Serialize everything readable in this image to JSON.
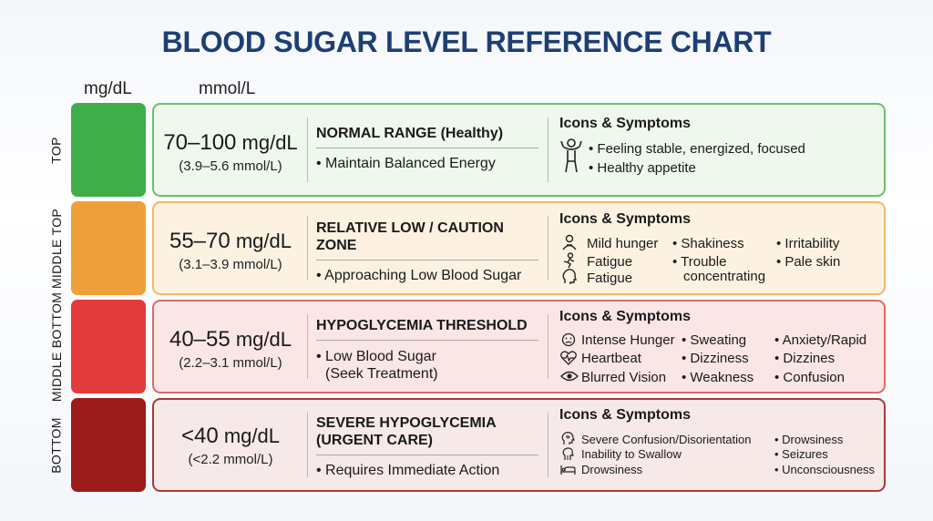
{
  "title": "BLOOD SUGAR LEVEL REFERENCE CHART",
  "column_headers": {
    "mgdl": "mg/dL",
    "mmol": "mmol/L"
  },
  "colors": {
    "title": "#1d3f73",
    "top": "#3fae49",
    "middle_top": "#f0a03a",
    "middle_bottom": "#e23b3b",
    "bottom": "#9c1b1b"
  },
  "rows": [
    {
      "side_label": "TOP",
      "range_main": "70–100",
      "range_unit": " mg/dL",
      "range_sub": "(3.9–5.6 mmol/L)",
      "heading": "NORMAL RANGE (Healthy)",
      "description": "• Maintain Balanced Energy",
      "symptoms_title": "Icons & Symptoms",
      "symptoms": [
        "• Feeling stable, energized, focused",
        "• Healthy appetite"
      ],
      "icons": [
        "person-flexing-icon"
      ]
    },
    {
      "side_label": "MIDDLE TOP",
      "range_main": "55–70",
      "range_unit": " mg/dL",
      "range_sub": "(3.1–3.9 mmol/L)",
      "heading": "RELATIVE LOW / CAUTION ZONE",
      "description": "• Approaching Low Blood Sugar",
      "symptoms_title": "Icons & Symptoms",
      "symptoms": [
        "Mild hunger",
        "Fatigue",
        "Fatigue",
        "• Shakiness",
        "• Trouble",
        "concentrating",
        "• Irritability",
        "• Pale skin"
      ],
      "icons": [
        "person-hunger-icon",
        "person-tired-icon",
        "head-icon"
      ]
    },
    {
      "side_label": "MIDDLE BOTTOM",
      "range_main": "40–55",
      "range_unit": " mg/dL",
      "range_sub": "(2.2–3.1 mmol/L)",
      "heading": "HYPOGLYCEMIA THRESHOLD",
      "description": [
        "• Low Blood Sugar",
        "(Seek Treatment)"
      ],
      "symptoms_title": "Icons & Symptoms",
      "symptoms": [
        "Intense Hunger",
        "Heartbeat",
        "Blurred Vision",
        "• Sweating",
        "• Dizziness",
        "• Weakness",
        "• Anxiety/Rapid",
        "• Dizzines",
        "• Confusion"
      ],
      "icons": [
        "sad-face-icon",
        "heartbeat-icon",
        "eye-icon"
      ]
    },
    {
      "side_label": "BOTTOM",
      "range_main": "<40",
      "range_unit": " mg/dL",
      "range_sub": "(<2.2 mmol/L)",
      "heading": [
        "SEVERE HYPOGLYCEMIA",
        "(URGENT CARE)"
      ],
      "description": "• Requires Immediate Action",
      "symptoms_title": "Icons & Symptoms",
      "symptoms": [
        "Severe Confusion/Disorientation",
        "Inability to Swallow",
        "Drowsiness",
        "• Drowsiness",
        "• Seizures",
        "• Unconsciousness"
      ],
      "icons": [
        "dizzy-head-icon",
        "throat-icon",
        "bed-icon"
      ]
    }
  ]
}
